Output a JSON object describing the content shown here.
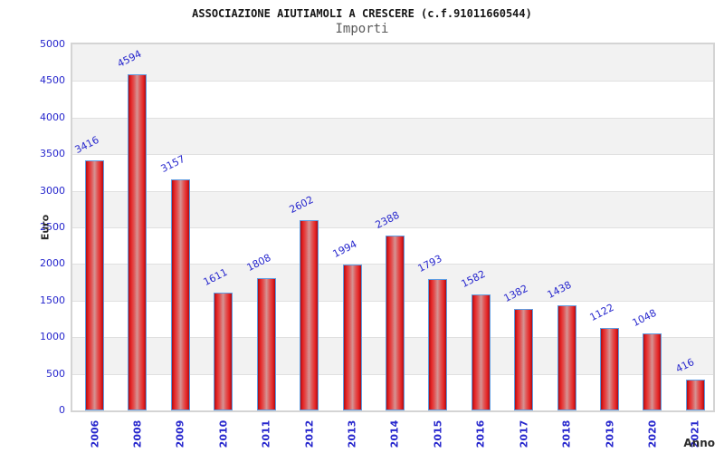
{
  "title": "ASSOCIAZIONE AIUTIAMOLI A CRESCERE (c.f.91011660544)",
  "subtitle": "Importi",
  "chart_data": {
    "type": "bar",
    "title": "ASSOCIAZIONE AIUTIAMOLI A CRESCERE (c.f.91011660544)",
    "subtitle": "Importi",
    "xlabel": "Anno",
    "ylabel": "Euro",
    "categories": [
      "2006",
      "2008",
      "2009",
      "2010",
      "2011",
      "2012",
      "2013",
      "2014",
      "2015",
      "2016",
      "2017",
      "2018",
      "2019",
      "2020",
      "2021"
    ],
    "values": [
      3416,
      4594,
      3157,
      1611,
      1808,
      2602,
      1994,
      2388,
      1793,
      1582,
      1382,
      1438,
      1122,
      1048,
      416
    ],
    "ylim": [
      0,
      5000
    ],
    "ytick_step": 500,
    "yticks": [
      "0",
      "500",
      "1000",
      "1500",
      "2000",
      "2500",
      "3000",
      "3500",
      "4000",
      "4500",
      "5000"
    ],
    "grid": "horizontal, alternating shaded bands",
    "legend": "none",
    "colors": {
      "bar_fill": "#e62424",
      "bar_fill_edge": "#a80e16",
      "bar_fill_center": "#d59494",
      "bar_border": "#5f9de2",
      "axis_text": "#2626cd",
      "band_shade": "#f2f2f2",
      "gridline": "#e0e0e0",
      "plot_border": "#d4d4d4",
      "title_text": "#161616",
      "subtitle_text": "#5a5a5a"
    }
  }
}
